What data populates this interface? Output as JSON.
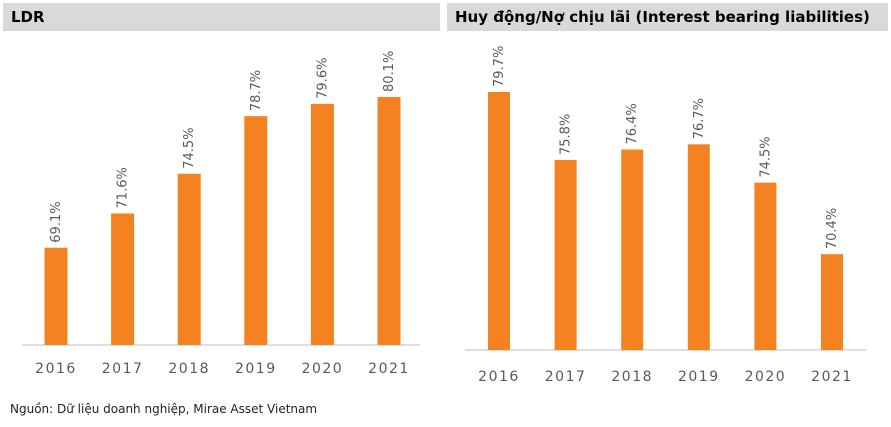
{
  "source_note": "Nguồn: Dữ liệu doanh nghiệp, Mirae Asset Vietnam",
  "colors": {
    "bar": "#f58220",
    "label": "#595959",
    "axis": "#bfbfbf",
    "header_bg": "#d9d9d9"
  },
  "chart_data": [
    {
      "type": "bar",
      "title": "LDR",
      "categories": [
        "2016",
        "2017",
        "2018",
        "2019",
        "2020",
        "2021"
      ],
      "values": [
        69.1,
        71.6,
        74.5,
        78.7,
        79.6,
        80.1
      ],
      "value_labels": [
        "69.1%",
        "71.6%",
        "74.5%",
        "78.7%",
        "79.6%",
        "80.1%"
      ],
      "ylim": [
        62,
        83
      ],
      "grid": false,
      "legend": "none"
    },
    {
      "type": "bar",
      "title": "Huy động/Nợ chịu lãi (Interest bearing liabilities)",
      "categories": [
        "2016",
        "2017",
        "2018",
        "2019",
        "2020",
        "2021"
      ],
      "values": [
        79.7,
        75.8,
        76.4,
        76.7,
        74.5,
        70.4
      ],
      "value_labels": [
        "79.7%",
        "75.8%",
        "76.4%",
        "76.7%",
        "74.5%",
        "70.4%"
      ],
      "ylim": [
        64.9,
        81.4
      ],
      "grid": false,
      "legend": "none"
    }
  ]
}
